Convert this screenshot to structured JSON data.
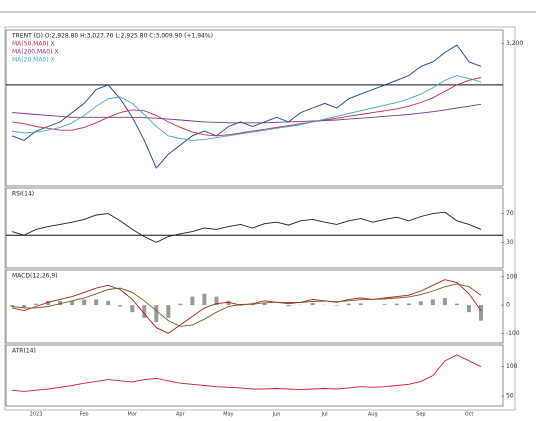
{
  "chart_data": [
    {
      "type": "line",
      "title": "TRENT (D) O:2,928.80 H:3,027.70 L:2,925.80 C:3,009.90 (+1.94%)",
      "ylim": [
        1700,
        3300
      ],
      "yticks": [
        {
          "value": 3200,
          "label": "3,200"
        }
      ],
      "reference_line": 2750,
      "series": [
        {
          "color": "#1f3f8f",
          "values": [
            2200,
            2150,
            2250,
            2300,
            2350,
            2450,
            2550,
            2700,
            2750,
            2600,
            2400,
            2150,
            1850,
            2000,
            2100,
            2200,
            2250,
            2200,
            2300,
            2350,
            2300,
            2350,
            2400,
            2350,
            2450,
            2500,
            2550,
            2500,
            2600,
            2650,
            2700,
            2750,
            2800,
            2850,
            2950,
            3000,
            3100,
            3180,
            3000,
            2950
          ]
        },
        {
          "name": "MA(50,MA0) X",
          "color": "#c0304a",
          "values": [
            2350,
            2330,
            2300,
            2280,
            2260,
            2260,
            2290,
            2340,
            2400,
            2450,
            2480,
            2470,
            2420,
            2350,
            2290,
            2240,
            2210,
            2200,
            2210,
            2230,
            2250,
            2270,
            2290,
            2310,
            2330,
            2350,
            2370,
            2390,
            2410,
            2430,
            2450,
            2470,
            2490,
            2520,
            2560,
            2610,
            2680,
            2750,
            2800,
            2830
          ]
        },
        {
          "name": "MA(200,MA0) X",
          "color": "#7a3a8a",
          "values": [
            2450,
            2440,
            2430,
            2420,
            2410,
            2400,
            2400,
            2400,
            2400,
            2400,
            2400,
            2395,
            2390,
            2380,
            2370,
            2360,
            2350,
            2345,
            2340,
            2340,
            2340,
            2340,
            2345,
            2350,
            2355,
            2360,
            2365,
            2370,
            2380,
            2390,
            2400,
            2410,
            2420,
            2430,
            2445,
            2460,
            2480,
            2500,
            2520,
            2540
          ]
        },
        {
          "name": "MA(20,MA0) X",
          "color": "#4aa8c8",
          "values": [
            2250,
            2230,
            2240,
            2260,
            2290,
            2340,
            2420,
            2520,
            2600,
            2620,
            2550,
            2430,
            2300,
            2200,
            2170,
            2150,
            2160,
            2180,
            2200,
            2220,
            2240,
            2260,
            2280,
            2300,
            2320,
            2350,
            2380,
            2410,
            2440,
            2470,
            2500,
            2530,
            2560,
            2600,
            2650,
            2720,
            2800,
            2850,
            2820,
            2780
          ]
        }
      ]
    },
    {
      "type": "line",
      "title": "RSI(14)",
      "ylim": [
        0,
        100
      ],
      "yticks": [
        30,
        70
      ],
      "reference_line": 40,
      "series": [
        {
          "color": "#222222",
          "values": [
            45,
            40,
            48,
            52,
            55,
            58,
            62,
            68,
            70,
            60,
            48,
            38,
            30,
            38,
            42,
            45,
            50,
            48,
            52,
            55,
            50,
            56,
            58,
            54,
            60,
            62,
            58,
            55,
            60,
            63,
            58,
            62,
            65,
            60,
            66,
            70,
            72,
            60,
            55,
            48
          ]
        }
      ]
    },
    {
      "type": "line",
      "title": "MACD(12,26,9)",
      "ylim": [
        -120,
        110
      ],
      "yticks": [
        -100,
        0,
        100
      ],
      "series": [
        {
          "type": "bar",
          "color": "#999999",
          "values": [
            -5,
            -10,
            5,
            15,
            15,
            15,
            20,
            20,
            15,
            -5,
            -25,
            -45,
            -60,
            -45,
            5,
            30,
            40,
            30,
            15,
            -2,
            2,
            7,
            0,
            -4,
            1,
            7,
            1,
            -2,
            5,
            6,
            0,
            3,
            5,
            6,
            13,
            20,
            25,
            5,
            -25,
            -55
          ]
        },
        {
          "color": "#b02020",
          "values": [
            -10,
            -20,
            -5,
            10,
            20,
            30,
            45,
            60,
            70,
            55,
            20,
            -30,
            -80,
            -100,
            -70,
            -40,
            -10,
            5,
            10,
            0,
            5,
            15,
            10,
            5,
            10,
            20,
            15,
            10,
            20,
            25,
            20,
            25,
            30,
            35,
            50,
            70,
            90,
            80,
            40,
            -20
          ]
        },
        {
          "color": "#7a5a20",
          "values": [
            -5,
            -10,
            -10,
            -5,
            5,
            15,
            25,
            40,
            55,
            60,
            45,
            15,
            -20,
            -55,
            -75,
            -70,
            -50,
            -25,
            -5,
            2,
            3,
            8,
            10,
            9,
            9,
            13,
            14,
            12,
            15,
            19,
            20,
            22,
            25,
            29,
            37,
            50,
            65,
            75,
            65,
            35
          ]
        }
      ]
    },
    {
      "type": "line",
      "title": "ATR(14)",
      "ylim": [
        40,
        130
      ],
      "yticks": [
        50,
        100
      ],
      "categories": [
        null,
        null,
        "2023",
        null,
        null,
        null,
        "Feb",
        null,
        null,
        null,
        "Mar",
        null,
        null,
        null,
        "Apr",
        null,
        null,
        null,
        "May",
        null,
        null,
        null,
        "Jun",
        null,
        null,
        null,
        "Jul",
        null,
        null,
        null,
        "Aug",
        null,
        null,
        null,
        "Sep",
        null,
        null,
        null,
        "Oct",
        null
      ],
      "series": [
        {
          "color": "#d02030",
          "values": [
            60,
            58,
            60,
            62,
            65,
            68,
            72,
            75,
            78,
            76,
            74,
            78,
            80,
            76,
            72,
            70,
            68,
            66,
            65,
            64,
            62,
            62,
            63,
            62,
            61,
            62,
            63,
            62,
            64,
            66,
            65,
            66,
            68,
            70,
            75,
            85,
            110,
            120,
            110,
            100
          ]
        }
      ]
    }
  ]
}
